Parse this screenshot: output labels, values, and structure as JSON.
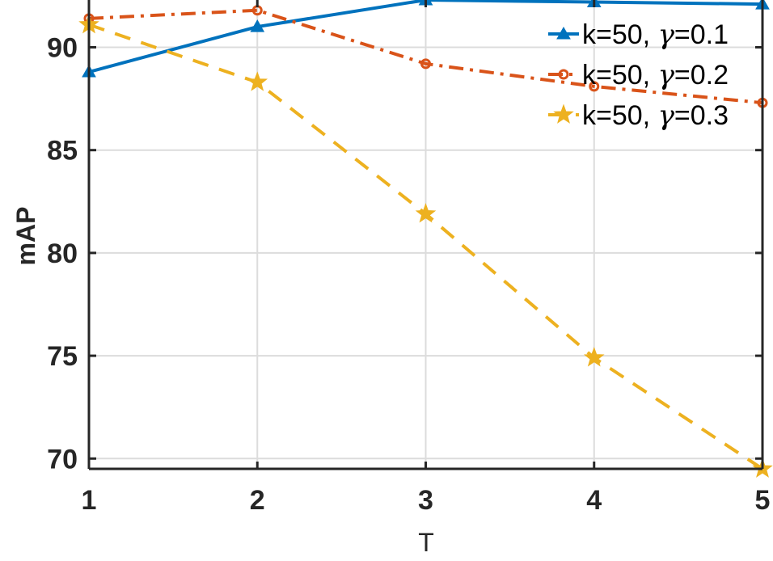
{
  "chart_data": {
    "type": "line",
    "title": "",
    "xlabel": "T",
    "ylabel": "mAP",
    "x": [
      1,
      2,
      3,
      4,
      5
    ],
    "xlim": [
      1,
      5
    ],
    "ylim": [
      69.5,
      92.3
    ],
    "xticks": [
      1,
      2,
      3,
      4,
      5
    ],
    "yticks": [
      70,
      75,
      80,
      85,
      90
    ],
    "grid": true,
    "legend_position": "top-right",
    "series": [
      {
        "name": "k=50, γ=0.1",
        "name_prefix": "k=50, ",
        "name_greek": "γ",
        "name_suffix": "=0.1",
        "values": [
          88.8,
          91.0,
          92.3,
          92.2,
          92.1
        ],
        "color": "#0072BD",
        "linestyle": "solid",
        "marker": "triangle"
      },
      {
        "name": "k=50, γ=0.2",
        "name_prefix": "k=50, ",
        "name_greek": "γ",
        "name_suffix": "=0.2",
        "values": [
          91.4,
          91.8,
          89.2,
          88.1,
          87.3
        ],
        "color": "#D95319",
        "linestyle": "dashdot",
        "marker": "circle"
      },
      {
        "name": "k=50, γ=0.3",
        "name_prefix": "k=50, ",
        "name_greek": "γ",
        "name_suffix": "=0.3",
        "values": [
          91.1,
          88.3,
          81.9,
          74.9,
          69.5
        ],
        "color": "#EDB120",
        "linestyle": "dashed",
        "marker": "star"
      }
    ]
  }
}
